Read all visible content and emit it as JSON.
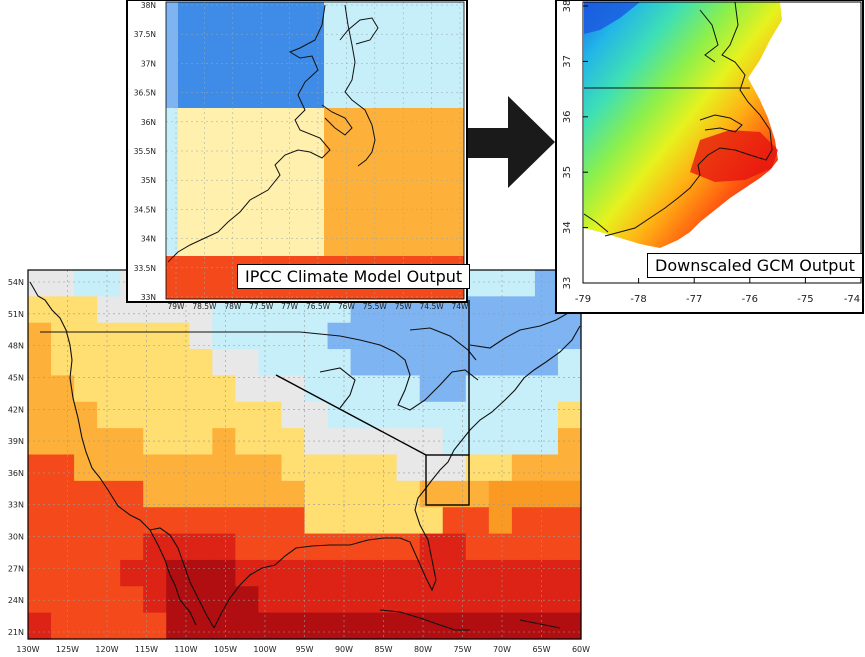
{
  "main_map": {
    "lat_ticks": [
      "54N",
      "51N",
      "48N",
      "45N",
      "42N",
      "39N",
      "36N",
      "33N",
      "30N",
      "27N",
      "24N",
      "21N"
    ],
    "lon_ticks": [
      "130W",
      "125W",
      "120W",
      "115W",
      "110W",
      "105W",
      "100W",
      "95W",
      "90W",
      "85W",
      "80W",
      "75W",
      "70W",
      "65W",
      "60W"
    ]
  },
  "inset_ipcc": {
    "label": "IPCC Climate Model Output",
    "lat_ticks": [
      "38N",
      "37.5N",
      "37N",
      "36.5N",
      "36N",
      "35.5N",
      "35N",
      "34.5N",
      "34N",
      "33.5N",
      "33N"
    ],
    "lon_ticks": [
      "79W",
      "78.5W",
      "78W",
      "77.5W",
      "77W",
      "76.5W",
      "76W",
      "75.5W",
      "75W",
      "74.5W",
      "74W"
    ]
  },
  "inset_downscaled": {
    "label": "Downscaled GCM Output",
    "lat_ticks": [
      "38",
      "37",
      "36",
      "35",
      "34",
      "33"
    ],
    "lon_ticks": [
      "-79",
      "-78",
      "-77",
      "-76",
      "-75",
      "-74"
    ]
  },
  "colors": {
    "dark_blue": "#3f8be8",
    "blue": "#7fb4f2",
    "light_blue": "#c7effa",
    "gray": "#e8e8e8",
    "pale_yellow": "#fff0ad",
    "yellow": "#ffde72",
    "orange": "#fdb03a",
    "orange2": "#fa9a23",
    "red_orange": "#f44a1b",
    "red": "#dc2316",
    "dark_red": "#b00e10",
    "arrow": "#1a1a1a"
  }
}
